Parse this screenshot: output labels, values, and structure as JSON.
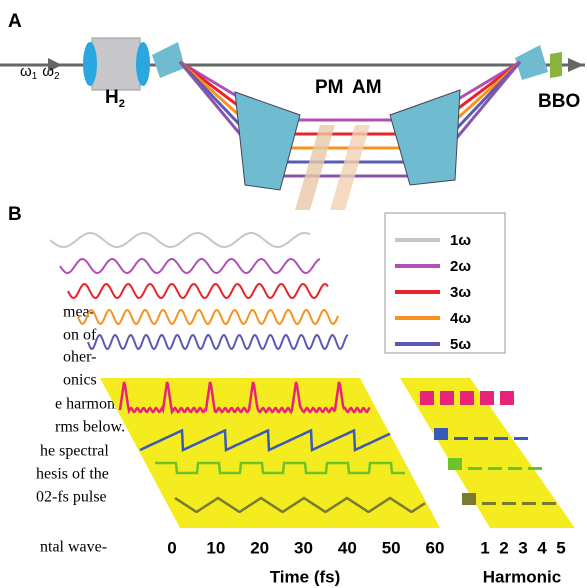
{
  "panel_a": {
    "label": "A",
    "input": {
      "w1": "ω",
      "w1_sub": "1",
      "w2": "ω",
      "w2_sub": "2"
    },
    "cell": {
      "text": "H",
      "sub": "2"
    },
    "pm": "PM",
    "am": "AM",
    "crystal": "BBO"
  },
  "panel_b": {
    "label": "B",
    "legend": [
      "1ω",
      "2ω",
      "3ω",
      "4ω",
      "5ω"
    ],
    "time_ticks": [
      0,
      10,
      20,
      30,
      40,
      50,
      60
    ],
    "time_label": "Time (fs)",
    "harmonic_ticks": [
      1,
      2,
      3,
      4,
      5
    ],
    "harmonic_label": "Harmonic"
  },
  "body_text": [
    "mea-",
    "on of",
    "oher-",
    "onics",
    "e harmonic",
    "rms below.",
    "he spectral",
    "hesis of the",
    "02-fs pulse",
    "ntal wave-"
  ]
}
